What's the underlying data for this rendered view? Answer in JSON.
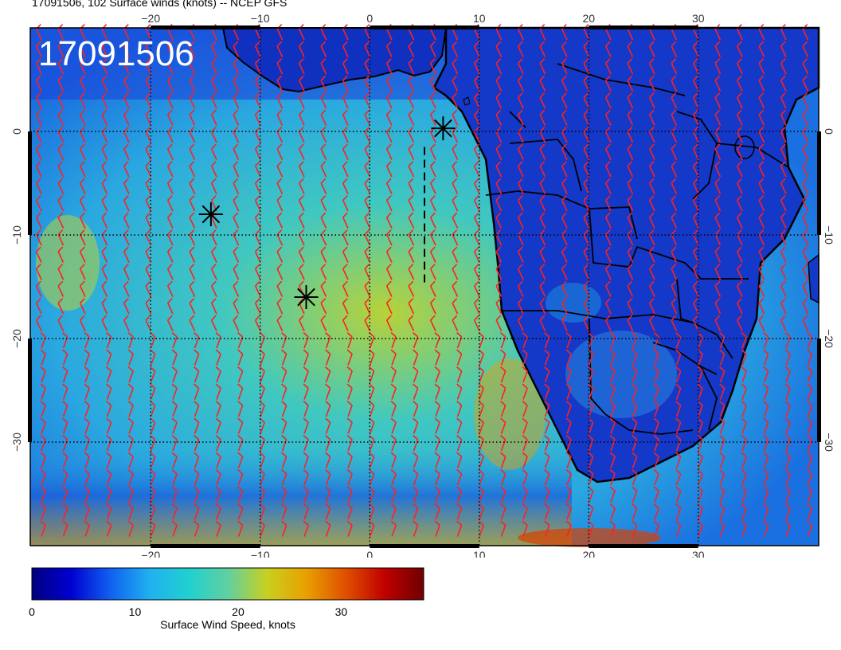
{
  "header": {
    "title": "17091506, 102 Surface winds (knots) -- NCEP GFS",
    "overlay_label": "17091506"
  },
  "map": {
    "lon_range": [
      -31,
      41
    ],
    "lat_range": [
      -40,
      10
    ],
    "lon_ticks": [
      -20,
      -10,
      0,
      10,
      20,
      30
    ],
    "lat_ticks": [
      0,
      -10,
      -20,
      -30
    ],
    "lon_tick_labels": [
      "−20",
      "−10",
      "0",
      "10",
      "20",
      "30"
    ],
    "lat_tick_labels": [
      "0",
      "−10",
      "−20",
      "−30"
    ],
    "grid": true,
    "barb_color": "#ff2020",
    "markers": [
      {
        "symbol": "asterisk",
        "lon": -14.5,
        "lat": -8
      },
      {
        "symbol": "asterisk",
        "lon": -5.8,
        "lat": -16
      },
      {
        "symbol": "asterisk",
        "lon": 6.7,
        "lat": 0.3
      }
    ],
    "track": {
      "style": "dashed",
      "lon": [
        5,
        5
      ],
      "lat": [
        -1.5,
        -15
      ]
    }
  },
  "colorbar": {
    "label": "Surface Wind Speed, knots",
    "range": [
      0,
      38
    ],
    "ticks": [
      0,
      10,
      20,
      30
    ],
    "tick_labels": [
      "0",
      "10",
      "20",
      "30"
    ],
    "colors": [
      "#000080",
      "#0000d0",
      "#1060f0",
      "#20b0f0",
      "#20d0d0",
      "#60d0a0",
      "#c8d020",
      "#e8a000",
      "#e05000",
      "#c00000",
      "#700000"
    ]
  }
}
